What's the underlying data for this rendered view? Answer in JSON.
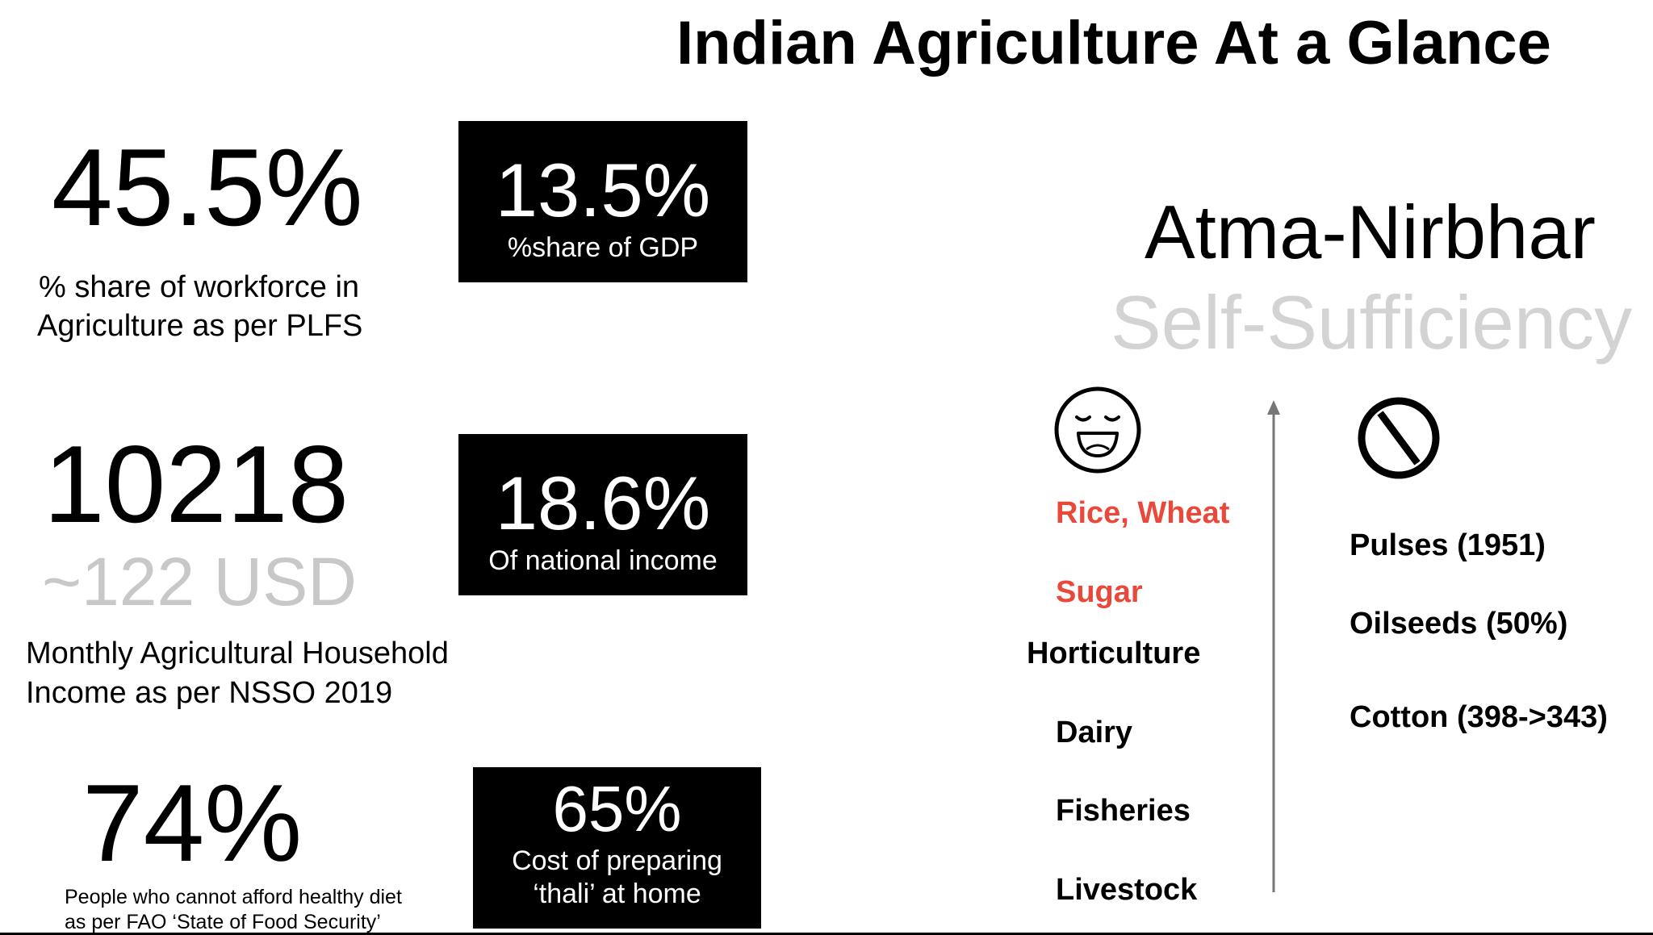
{
  "title": "Indian Agriculture At a Glance",
  "left": {
    "stat1": {
      "value": "45.5%",
      "caption_line1": "% share of workforce in",
      "caption_line2": "Agriculture as per PLFS"
    },
    "box1": {
      "value": "13.5%",
      "label": "%share of GDP"
    },
    "stat2": {
      "value": "10218",
      "usd": "~122 USD",
      "caption_line1": "Monthly Agricultural Household",
      "caption_line2": "Income as per NSSO 2019"
    },
    "box2": {
      "value": "18.6%",
      "label": "Of national income"
    },
    "stat3": {
      "value": "74%",
      "caption_line1": "People who cannot afford healthy diet",
      "caption_line2": "as per FAO ‘State of Food Security’"
    },
    "box3": {
      "value": "65%",
      "label_line1": "Cost of preparing",
      "label_line2": "‘thali’ at home"
    }
  },
  "right": {
    "heading": "Atma-Nirbhar",
    "subheading": "Self-Sufficiency",
    "icons": {
      "sufficient": "smiling-face-icon",
      "deficient": "prohibited-icon"
    },
    "sufficient_items": [
      {
        "label": "Rice, Wheat",
        "color": "#e8493a"
      },
      {
        "label": "Sugar",
        "color": "#e8493a"
      },
      {
        "label": "Horticulture",
        "color": "#000000"
      },
      {
        "label": "Dairy",
        "color": "#000000"
      },
      {
        "label": "Fisheries",
        "color": "#000000"
      },
      {
        "label": "Livestock",
        "color": "#000000"
      }
    ],
    "deficient_items": [
      {
        "label": "Pulses (1951)"
      },
      {
        "label": "Oilseeds (50%)"
      },
      {
        "label": "Cotton (398->343)"
      }
    ]
  },
  "colors": {
    "accent_red": "#e8493a",
    "muted_gray": "#c8c8c8",
    "box_bg": "#000000"
  }
}
